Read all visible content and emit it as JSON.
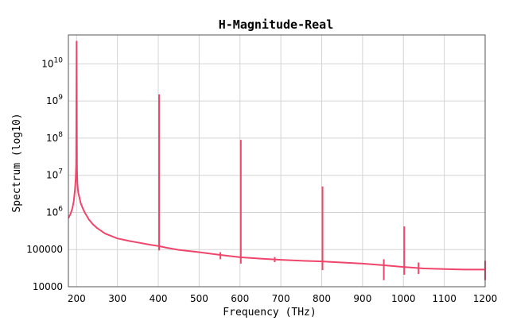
{
  "chart_data": {
    "type": "line",
    "title": "H-Magnitude-Real",
    "xlabel": "Frequency (THz)",
    "ylabel": "Spectrum (log10)",
    "xlim": [
      180,
      1200
    ],
    "ylim": [
      10000,
      60000000000
    ],
    "yscale": "log",
    "grid": true,
    "x_ticks": [
      200,
      300,
      400,
      500,
      600,
      700,
      800,
      900,
      1000,
      1100,
      1200
    ],
    "x_tick_labels": [
      "200",
      "300",
      "400",
      "500",
      "600",
      "700",
      "800",
      "900",
      "1000",
      "1100",
      "1200"
    ],
    "y_ticks": [
      10000,
      100000,
      1000000,
      10000000,
      100000000,
      1000000000,
      10000000000
    ],
    "y_tick_labels": [
      {
        "base": "10000",
        "exp": ""
      },
      {
        "base": "100000",
        "exp": ""
      },
      {
        "base": "10",
        "exp": "6"
      },
      {
        "base": "10",
        "exp": "7"
      },
      {
        "base": "10",
        "exp": "8"
      },
      {
        "base": "10",
        "exp": "9"
      },
      {
        "base": "10",
        "exp": "10"
      }
    ],
    "series": [
      {
        "color": "#f0456a",
        "x": [
          180,
          185,
          190,
          193,
          196,
          198,
          199,
          200,
          201,
          202,
          204,
          207,
          210,
          215,
          220,
          230,
          240,
          250,
          270,
          300,
          330,
          350,
          380,
          400,
          420,
          450,
          500,
          550,
          600,
          650,
          700,
          750,
          800,
          850,
          900,
          950,
          1000,
          1050,
          1100,
          1150,
          1200
        ],
        "values": [
          700000,
          900000,
          1300000,
          2000000,
          4000000,
          8000000,
          20000000,
          40000000000,
          15000000,
          6000000,
          3500000,
          2500000,
          1800000,
          1300000,
          1000000,
          650000,
          480000,
          380000,
          270000,
          200000,
          170000,
          155000,
          135000,
          125000,
          112000,
          98000,
          85000,
          72000,
          62000,
          57000,
          53000,
          50000,
          48000,
          45000,
          42000,
          38000,
          34000,
          31000,
          30000,
          29000,
          29000
        ]
      }
    ],
    "spikes": [
      {
        "x": 402,
        "peak": 1500000000,
        "dip": 95000
      },
      {
        "x": 602,
        "peak": 90000000,
        "dip": 42000
      },
      {
        "x": 802,
        "peak": 5000000,
        "dip": 28000
      },
      {
        "x": 1002,
        "peak": 420000,
        "dip": 21000
      },
      {
        "x": 552,
        "peak": 85000,
        "dip": 55000
      },
      {
        "x": 685,
        "peak": 63000,
        "dip": 46000
      },
      {
        "x": 952,
        "peak": 55000,
        "dip": 15000
      },
      {
        "x": 1037,
        "peak": 45000,
        "dip": 22000
      },
      {
        "x": 1200,
        "peak": 50000,
        "dip": 15000
      }
    ]
  }
}
